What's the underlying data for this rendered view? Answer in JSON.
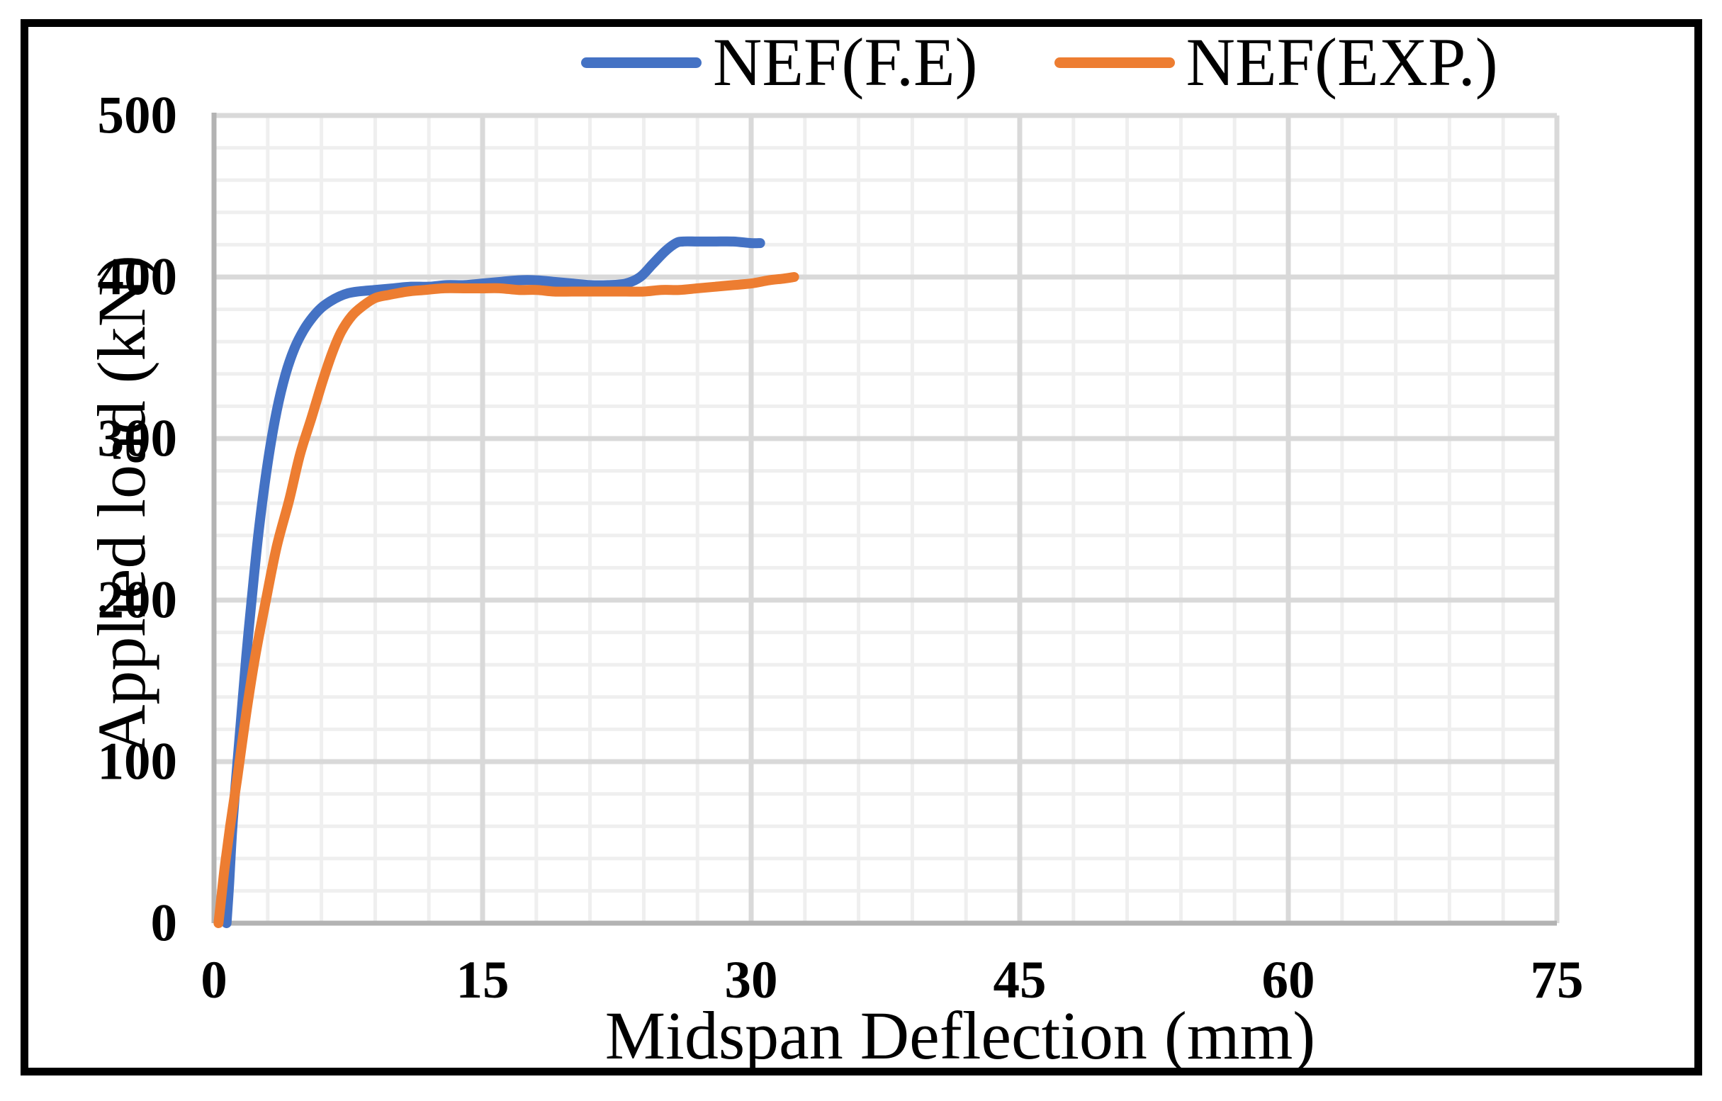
{
  "chart_data": {
    "type": "line",
    "title": "",
    "xlabel": "Midspan Deflection (mm)",
    "ylabel": "Applied load (kN)",
    "xlim": [
      0,
      75
    ],
    "ylim": [
      0,
      500
    ],
    "x_ticks": [
      0,
      15,
      30,
      45,
      60,
      75
    ],
    "y_ticks": [
      0,
      100,
      200,
      300,
      400,
      500
    ],
    "x_minor_step": 3,
    "y_minor_step": 20,
    "grid": "major+minor",
    "legend_position": "top-center",
    "series": [
      {
        "name": "NEF(F.E)",
        "color": "#4472C4",
        "points": [
          [
            0.7,
            0
          ],
          [
            0.85,
            25
          ],
          [
            1.0,
            55
          ],
          [
            1.2,
            85
          ],
          [
            1.5,
            125
          ],
          [
            1.8,
            165
          ],
          [
            2.1,
            200
          ],
          [
            2.5,
            243
          ],
          [
            3.0,
            285
          ],
          [
            3.5,
            317
          ],
          [
            4.0,
            340
          ],
          [
            4.5,
            356
          ],
          [
            5.0,
            367
          ],
          [
            5.5,
            375
          ],
          [
            6.0,
            381
          ],
          [
            6.5,
            385
          ],
          [
            7.0,
            388
          ],
          [
            7.5,
            390
          ],
          [
            8.0,
            391
          ],
          [
            9.0,
            392
          ],
          [
            10,
            393
          ],
          [
            11,
            394
          ],
          [
            12,
            394
          ],
          [
            13,
            395
          ],
          [
            14,
            395
          ],
          [
            15,
            396
          ],
          [
            16,
            397
          ],
          [
            17,
            398
          ],
          [
            18,
            398
          ],
          [
            19,
            397
          ],
          [
            20,
            396
          ],
          [
            21,
            395
          ],
          [
            22,
            395
          ],
          [
            23,
            396
          ],
          [
            23.8,
            400
          ],
          [
            24.5,
            408
          ],
          [
            25.2,
            416
          ],
          [
            25.8,
            421
          ],
          [
            26.2,
            422
          ],
          [
            27,
            422
          ],
          [
            28,
            422
          ],
          [
            29,
            422
          ],
          [
            30,
            421
          ],
          [
            30.5,
            421
          ]
        ]
      },
      {
        "name": "NEF(EXP.)",
        "color": "#ED7D31",
        "points": [
          [
            0.25,
            0
          ],
          [
            0.4,
            15
          ],
          [
            0.6,
            35
          ],
          [
            0.9,
            60
          ],
          [
            1.3,
            90
          ],
          [
            1.8,
            130
          ],
          [
            2.3,
            165
          ],
          [
            2.9,
            200
          ],
          [
            3.5,
            233
          ],
          [
            4.2,
            262
          ],
          [
            4.8,
            290
          ],
          [
            5.45,
            313
          ],
          [
            6.05,
            335
          ],
          [
            6.6,
            353
          ],
          [
            7.1,
            366
          ],
          [
            7.7,
            376
          ],
          [
            8.3,
            382
          ],
          [
            9.0,
            387
          ],
          [
            9.8,
            389
          ],
          [
            10.8,
            391
          ],
          [
            11.8,
            392
          ],
          [
            12.8,
            393
          ],
          [
            14,
            393
          ],
          [
            15,
            393
          ],
          [
            16,
            393
          ],
          [
            17,
            392
          ],
          [
            18,
            392
          ],
          [
            19,
            391
          ],
          [
            20,
            391
          ],
          [
            21,
            391
          ],
          [
            22,
            391
          ],
          [
            23,
            391
          ],
          [
            24,
            391
          ],
          [
            25,
            392
          ],
          [
            26,
            392
          ],
          [
            27,
            393
          ],
          [
            28,
            394
          ],
          [
            29,
            395
          ],
          [
            30,
            396
          ],
          [
            31,
            398
          ],
          [
            31.8,
            399
          ],
          [
            32.4,
            400
          ]
        ]
      }
    ],
    "grid_colors": {
      "minor": "#efefef",
      "major": "#d9d9d9",
      "axis": "#b3b3b3"
    }
  }
}
